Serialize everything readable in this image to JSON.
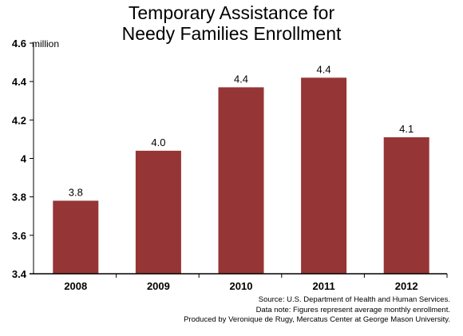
{
  "chart_data": {
    "type": "bar",
    "title_lines": [
      "Temporary Assistance for",
      "Needy Families Enrollment"
    ],
    "unit_label": "million",
    "categories": [
      "2008",
      "2009",
      "2010",
      "2011",
      "2012"
    ],
    "values": [
      3.78,
      4.04,
      4.37,
      4.42,
      4.11
    ],
    "data_labels": [
      "3.8",
      "4.0",
      "4.4",
      "4.4",
      "4.1"
    ],
    "ylim": [
      3.4,
      4.6
    ],
    "yticks": [
      3.4,
      3.6,
      3.8,
      4,
      4.2,
      4.4,
      4.6
    ],
    "ytick_labels": [
      "3.4",
      "3.6",
      "3.8",
      "4",
      "4.2",
      "4.4",
      "4.6"
    ],
    "bar_color": "#963535",
    "grid": false,
    "legend": "none"
  },
  "footnotes": [
    "Source: U.S. Department of Health and Human Services.",
    "Data note: Figures represent average monthly enrollment.",
    "Produced by Veronique de Rugy, Mercatus Center at George Mason University."
  ]
}
